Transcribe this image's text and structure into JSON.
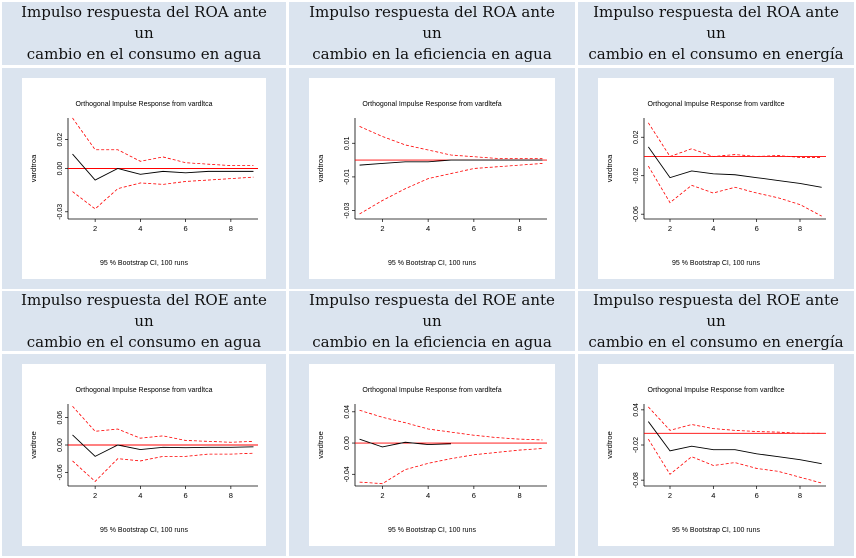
{
  "headers": [
    [
      "Impulso respuesta del ROA ante un",
      "cambio en el consumo en agua"
    ],
    [
      "Impulso respuesta del ROA ante un",
      "cambio en la eficiencia en agua"
    ],
    [
      "Impulso respuesta del ROA ante un",
      "cambio en el consumo en energía"
    ],
    [
      "Impulso respuesta del ROE ante un",
      "cambio en el consumo en agua"
    ],
    [
      "Impulso respuesta del ROE ante un",
      "cambio en la eficiencia en agua"
    ],
    [
      "Impulso respuesta del ROE ante un",
      "cambio en el consumo en energía"
    ]
  ],
  "chart_data": [
    {
      "type": "line",
      "title": "Orthogonal Impulse Response from vardltca",
      "ylabel": "vardtroa",
      "footer": "95 % Bootstrap CI, 100 runs",
      "ylim": [
        -0.035,
        0.035
      ],
      "yticks": [
        "0.02",
        "0.00",
        "-0.03"
      ],
      "ytick_values": [
        0.02,
        0.0,
        -0.03
      ],
      "xticks": [
        "2",
        "4",
        "6",
        "8"
      ],
      "x": [
        1,
        2,
        3,
        4,
        5,
        6,
        7,
        8,
        9
      ],
      "series": [
        {
          "values": [
            0.01,
            -0.008,
            0.0,
            -0.004,
            -0.002,
            -0.003,
            -0.002,
            -0.002,
            -0.002
          ]
        },
        {
          "values": [
            0.035,
            0.013,
            0.013,
            0.005,
            0.008,
            0.004,
            0.003,
            0.002,
            0.002
          ]
        },
        {
          "values": [
            -0.016,
            -0.028,
            -0.014,
            -0.01,
            -0.011,
            -0.009,
            -0.008,
            -0.007,
            -0.006
          ]
        }
      ]
    },
    {
      "type": "line",
      "title": "Orthogonal Impulse Response from vardltefa",
      "ylabel": "vardtroa",
      "footer": "95 % Bootstrap CI, 100 runs",
      "ylim": [
        -0.035,
        0.025
      ],
      "yticks": [
        "0.01",
        "-0.01",
        "-0.03"
      ],
      "ytick_values": [
        0.01,
        -0.01,
        -0.03
      ],
      "xticks": [
        "2",
        "4",
        "6",
        "8"
      ],
      "x": [
        1,
        2,
        3,
        4,
        5,
        6,
        7,
        8,
        9
      ],
      "series": [
        {
          "values": [
            -0.003,
            -0.002,
            -0.001,
            -0.001,
            0.0,
            0.0,
            0.0,
            0.0,
            0.0
          ]
        },
        {
          "values": [
            0.02,
            0.014,
            0.009,
            0.006,
            0.003,
            0.002,
            0.001,
            0.001,
            0.001
          ]
        },
        {
          "values": [
            -0.032,
            -0.024,
            -0.017,
            -0.011,
            -0.008,
            -0.005,
            -0.004,
            -0.003,
            -0.002
          ]
        }
      ]
    },
    {
      "type": "line",
      "title": "Orthogonal Impulse Response from vardltce",
      "ylabel": "vardtroa",
      "footer": "95 % Bootstrap CI, 100 runs",
      "ylim": [
        -0.065,
        0.04
      ],
      "yticks": [
        "0.02",
        "-0.02",
        "-0.06"
      ],
      "ytick_values": [
        0.02,
        -0.02,
        -0.06
      ],
      "xticks": [
        "2",
        "4",
        "6",
        "8"
      ],
      "x": [
        1,
        2,
        3,
        4,
        5,
        6,
        7,
        8,
        9
      ],
      "series": [
        {
          "values": [
            0.01,
            -0.022,
            -0.015,
            -0.018,
            -0.019,
            -0.022,
            -0.025,
            -0.028,
            -0.032
          ]
        },
        {
          "values": [
            0.035,
            0.0,
            0.008,
            0.0,
            0.002,
            0.0,
            0.001,
            -0.001,
            -0.001
          ]
        },
        {
          "values": [
            -0.01,
            -0.048,
            -0.03,
            -0.038,
            -0.032,
            -0.038,
            -0.043,
            -0.05,
            -0.062
          ]
        }
      ]
    },
    {
      "type": "line",
      "title": "Orthogonal Impulse Response from vardltca",
      "ylabel": "vardtroe",
      "footer": "95 % Bootstrap CI, 100 runs",
      "ylim": [
        -0.09,
        0.09
      ],
      "yticks": [
        "0.06",
        "0.00",
        "-0.06"
      ],
      "ytick_values": [
        0.06,
        0.0,
        -0.06
      ],
      "xticks": [
        "2",
        "4",
        "6",
        "8"
      ],
      "x": [
        1,
        2,
        3,
        4,
        5,
        6,
        7,
        8,
        9
      ],
      "series": [
        {
          "values": [
            0.022,
            -0.025,
            0.0,
            -0.01,
            -0.005,
            -0.006,
            -0.005,
            -0.005,
            -0.004
          ]
        },
        {
          "values": [
            0.085,
            0.03,
            0.035,
            0.015,
            0.02,
            0.01,
            0.008,
            0.006,
            0.008
          ]
        },
        {
          "values": [
            -0.035,
            -0.08,
            -0.03,
            -0.035,
            -0.025,
            -0.025,
            -0.02,
            -0.02,
            -0.018
          ]
        }
      ]
    },
    {
      "type": "line",
      "title": "Orthogonal Impulse Response from vardltefa",
      "ylabel": "vardtroe",
      "footer": "95 % Bootstrap CI, 100 runs",
      "ylim": [
        -0.055,
        0.05
      ],
      "yticks": [
        "0.04",
        "0.00",
        "-0.04"
      ],
      "ytick_values": [
        0.04,
        0.0,
        -0.04
      ],
      "xticks": [
        "2",
        "4",
        "6",
        "8"
      ],
      "x": [
        1,
        2,
        3,
        4,
        5,
        6,
        7,
        8,
        9
      ],
      "series": [
        {
          "values": [
            0.005,
            -0.005,
            0.001,
            -0.002,
            -0.001,
            null,
            null,
            null,
            null
          ]
        },
        {
          "values": [
            0.042,
            0.033,
            0.026,
            0.018,
            0.014,
            0.01,
            0.007,
            0.005,
            0.004
          ]
        },
        {
          "values": [
            -0.05,
            -0.052,
            -0.034,
            -0.026,
            -0.02,
            -0.015,
            -0.012,
            -0.009,
            -0.007
          ]
        }
      ]
    },
    {
      "type": "line",
      "title": "Orthogonal Impulse Response from vardltce",
      "ylabel": "vardtroe",
      "footer": "95 % Bootstrap CI, 100 runs",
      "ylim": [
        -0.09,
        0.05
      ],
      "yticks": [
        "0.04",
        "-0.02",
        "-0.08"
      ],
      "ytick_values": [
        0.04,
        -0.02,
        -0.08
      ],
      "xticks": [
        "2",
        "4",
        "6",
        "8"
      ],
      "x": [
        1,
        2,
        3,
        4,
        5,
        6,
        7,
        8,
        9
      ],
      "series": [
        {
          "values": [
            0.02,
            -0.03,
            -0.022,
            -0.028,
            -0.028,
            -0.035,
            -0.04,
            -0.045,
            -0.052
          ]
        },
        {
          "values": [
            0.045,
            0.005,
            0.015,
            0.008,
            0.005,
            0.003,
            0.002,
            0.0,
            0.0
          ]
        },
        {
          "values": [
            -0.01,
            -0.07,
            -0.04,
            -0.055,
            -0.05,
            -0.06,
            -0.065,
            -0.075,
            -0.085
          ]
        }
      ]
    }
  ]
}
